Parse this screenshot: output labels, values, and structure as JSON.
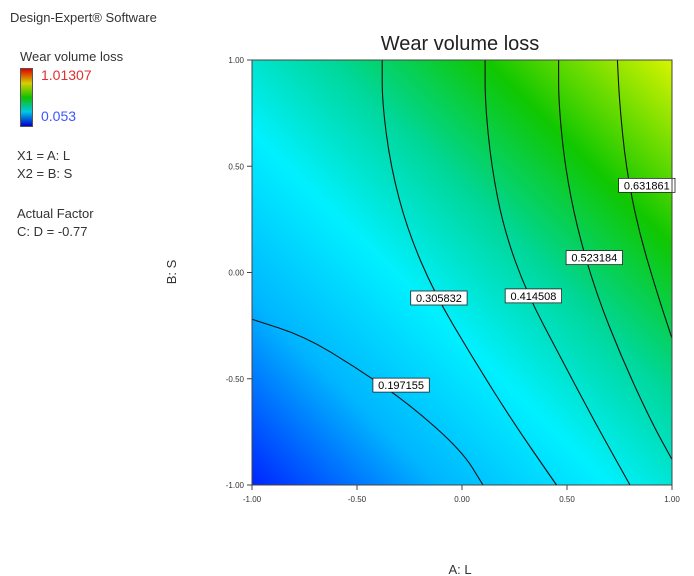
{
  "app": {
    "title": "Design-Expert® Software"
  },
  "legend": {
    "title": "Wear volume loss",
    "max_label": "1.01307",
    "min_label": "0.053",
    "x1_label": "X1 = A: L",
    "x2_label": "X2 = B: S",
    "actual_factor_title": "Actual Factor",
    "actual_factor_value": "C: D = -0.77"
  },
  "chart_data": {
    "type": "contour",
    "title": "Wear volume loss",
    "xlabel": "A: L",
    "ylabel": "B: S",
    "xlim": [
      -1.0,
      1.0
    ],
    "ylim": [
      -1.0,
      1.0
    ],
    "x_ticks": [
      "-1.00",
      "-0.50",
      "0.00",
      "0.50",
      "1.00"
    ],
    "y_ticks": [
      "1.00",
      "0.50",
      "0.00",
      "-0.50",
      "-1.00"
    ],
    "x_tick_values": [
      -1.0,
      -0.5,
      0.0,
      0.5,
      1.0
    ],
    "y_tick_values": [
      1.0,
      0.5,
      0.0,
      -0.5,
      -1.0
    ],
    "colorscale": [
      "#0025ff",
      "#00b5ff",
      "#00f0ff",
      "#00d79a",
      "#10c700",
      "#d7f400"
    ],
    "contours": [
      {
        "level": "0.197155",
        "label_at": [
          -0.29,
          -0.53
        ],
        "points": [
          [
            -1.0,
            -0.22
          ],
          [
            -0.75,
            -0.3
          ],
          [
            -0.5,
            -0.45
          ],
          [
            -0.25,
            -0.62
          ],
          [
            0.0,
            -0.84
          ],
          [
            0.1,
            -1.0
          ]
        ]
      },
      {
        "level": "0.305832",
        "label_at": [
          -0.11,
          -0.12
        ],
        "points": [
          [
            -0.38,
            1.0
          ],
          [
            -0.38,
            0.8
          ],
          [
            -0.34,
            0.5
          ],
          [
            -0.26,
            0.2
          ],
          [
            -0.13,
            -0.1
          ],
          [
            0.05,
            -0.4
          ],
          [
            0.24,
            -0.7
          ],
          [
            0.45,
            -1.0
          ]
        ]
      },
      {
        "level": "0.414508",
        "label_at": [
          0.34,
          -0.11
        ],
        "points": [
          [
            0.11,
            1.0
          ],
          [
            0.11,
            0.8
          ],
          [
            0.14,
            0.5
          ],
          [
            0.2,
            0.2
          ],
          [
            0.31,
            -0.1
          ],
          [
            0.47,
            -0.4
          ],
          [
            0.63,
            -0.7
          ],
          [
            0.8,
            -1.0
          ]
        ]
      },
      {
        "level": "0.523184",
        "label_at": [
          0.63,
          0.07
        ],
        "points": [
          [
            0.46,
            1.0
          ],
          [
            0.46,
            0.8
          ],
          [
            0.49,
            0.5
          ],
          [
            0.55,
            0.2
          ],
          [
            0.64,
            -0.1
          ],
          [
            0.76,
            -0.4
          ],
          [
            0.9,
            -0.7
          ],
          [
            1.0,
            -0.88
          ]
        ]
      },
      {
        "level": "0.631861",
        "label_at": [
          0.88,
          0.41
        ],
        "points": [
          [
            0.74,
            1.0
          ],
          [
            0.75,
            0.8
          ],
          [
            0.78,
            0.5
          ],
          [
            0.84,
            0.2
          ],
          [
            0.93,
            -0.1
          ],
          [
            1.0,
            -0.31
          ]
        ]
      }
    ]
  }
}
